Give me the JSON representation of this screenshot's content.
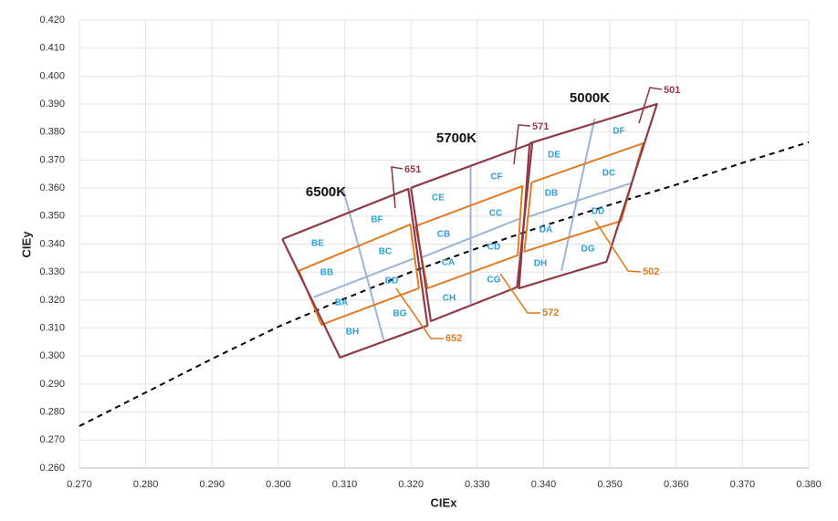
{
  "chart_data": {
    "type": "line",
    "xlabel": "CIEx",
    "ylabel": "CIEy",
    "grid": true,
    "xlim": [
      0.27,
      0.38
    ],
    "ylim": [
      0.26,
      0.42
    ],
    "xticks": [
      {
        "value": 0.27,
        "label": "0.270"
      },
      {
        "value": 0.28,
        "label": "0.280"
      },
      {
        "value": 0.29,
        "label": "0.290"
      },
      {
        "value": 0.3,
        "label": "0.300"
      },
      {
        "value": 0.31,
        "label": "0.310"
      },
      {
        "value": 0.32,
        "label": "0.320"
      },
      {
        "value": 0.33,
        "label": "0.330"
      },
      {
        "value": 0.34,
        "label": "0.340"
      },
      {
        "value": 0.35,
        "label": "0.350"
      },
      {
        "value": 0.36,
        "label": "0.360"
      },
      {
        "value": 0.37,
        "label": "0.370"
      },
      {
        "value": 0.38,
        "label": "0.380"
      }
    ],
    "yticks": [
      {
        "value": 0.26,
        "label": "0.260"
      },
      {
        "value": 0.27,
        "label": "0.270"
      },
      {
        "value": 0.28,
        "label": "0.280"
      },
      {
        "value": 0.29,
        "label": "0.290"
      },
      {
        "value": 0.3,
        "label": "0.300"
      },
      {
        "value": 0.31,
        "label": "0.310"
      },
      {
        "value": 0.32,
        "label": "0.320"
      },
      {
        "value": 0.33,
        "label": "0.330"
      },
      {
        "value": 0.34,
        "label": "0.340"
      },
      {
        "value": 0.35,
        "label": "0.350"
      },
      {
        "value": 0.36,
        "label": "0.360"
      },
      {
        "value": 0.37,
        "label": "0.370"
      },
      {
        "value": 0.38,
        "label": "0.380"
      },
      {
        "value": 0.39,
        "label": "0.390"
      },
      {
        "value": 0.4,
        "label": "0.400"
      },
      {
        "value": 0.41,
        "label": "0.410"
      },
      {
        "value": 0.42,
        "label": "0.420"
      }
    ],
    "series": [
      {
        "color": "#000000",
        "dashed": true,
        "x": [
          0.27,
          0.28,
          0.29,
          0.3,
          0.31,
          0.32,
          0.33,
          0.34,
          0.35,
          0.36,
          0.37,
          0.38
        ],
        "y": [
          0.275,
          0.287,
          0.299,
          0.3105,
          0.3205,
          0.33,
          0.3385,
          0.3465,
          0.354,
          0.3612,
          0.369,
          0.3764
        ]
      },
      {
        "color": "#9ab4d8",
        "x": [
          0.3053,
          0.3206
        ],
        "y": [
          0.321,
          0.335
        ]
      },
      {
        "color": "#9ab4d8",
        "x": [
          0.3098,
          0.3159
        ],
        "y": [
          0.3594,
          0.3057
        ]
      },
      {
        "color": "#9ab4d8",
        "x": [
          0.3217,
          0.3363
        ],
        "y": [
          0.3353,
          0.349
        ]
      },
      {
        "color": "#9ab4d8",
        "x": [
          0.329,
          0.329
        ],
        "y": [
          0.3676,
          0.3187
        ]
      },
      {
        "color": "#9ab4d8",
        "x": [
          0.3375,
          0.3531
        ],
        "y": [
          0.3496,
          0.3617
        ]
      },
      {
        "color": "#9ab4d8",
        "x": [
          0.3477,
          0.3427
        ],
        "y": [
          0.3848,
          0.3304
        ]
      },
      {
        "color": "#e07b22",
        "x": [
          0.3031,
          0.3199,
          0.3212,
          0.3065,
          0.3031
        ],
        "y": [
          0.3305,
          0.347,
          0.3242,
          0.3112,
          0.3305
        ]
      },
      {
        "color": "#e07b22",
        "x": [
          0.3207,
          0.3368,
          0.3361,
          0.3225,
          0.3207
        ],
        "y": [
          0.3464,
          0.3607,
          0.336,
          0.3242,
          0.3464
        ]
      },
      {
        "color": "#e07b22",
        "x": [
          0.3382,
          0.355,
          0.3517,
          0.3371,
          0.3382
        ],
        "y": [
          0.362,
          0.376,
          0.3483,
          0.3373,
          0.362
        ]
      },
      {
        "color": "#8e3b46",
        "x": [
          0.3006,
          0.3196,
          0.3225,
          0.3093,
          0.3006
        ],
        "y": [
          0.3418,
          0.3597,
          0.3109,
          0.2995,
          0.3418
        ]
      },
      {
        "color": "#8e3b46",
        "x": [
          0.32,
          0.3383,
          0.336,
          0.323,
          0.32
        ],
        "y": [
          0.3601,
          0.376,
          0.3246,
          0.3125,
          0.3601
        ]
      },
      {
        "color": "#8e3b46",
        "x": [
          0.3379,
          0.3571,
          0.3495,
          0.3363,
          0.3379
        ],
        "y": [
          0.376,
          0.39,
          0.3337,
          0.3242,
          0.376
        ]
      }
    ],
    "cct_labels": [
      "6500K",
      "5700K",
      "5000K"
    ],
    "bin_labels": [
      "BE",
      "BF",
      "BB",
      "BC",
      "BA",
      "BD",
      "BH",
      "BG",
      "CE",
      "CF",
      "CB",
      "CC",
      "CA",
      "CD",
      "CH",
      "CG",
      "DE",
      "DF",
      "DB",
      "DC",
      "DA",
      "DD",
      "DH",
      "DG"
    ],
    "code_labels": [
      {
        "text": "651",
        "color": "#8e3b46"
      },
      {
        "text": "652",
        "color": "#e07b22"
      },
      {
        "text": "571",
        "color": "#8e3b46"
      },
      {
        "text": "572",
        "color": "#e07b22"
      },
      {
        "text": "501",
        "color": "#8e3b46"
      },
      {
        "text": "502",
        "color": "#e07b22"
      }
    ]
  }
}
